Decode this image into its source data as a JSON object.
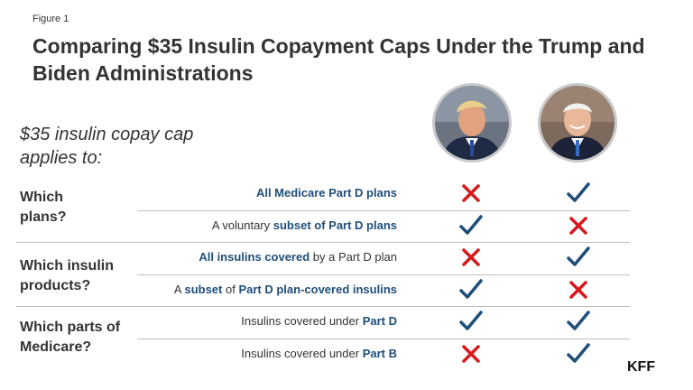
{
  "figure_label": "Figure 1",
  "title": "Comparing $35 Insulin Copayment Caps Under the Trump and Biden Administrations",
  "subhead": "$35 insulin copay cap applies to:",
  "brand": "KFF",
  "colors": {
    "check": "#1f4e79",
    "cross": "#d7191c",
    "label_bold": "#1f4e79"
  },
  "columns": [
    "trump-photo",
    "biden-photo"
  ],
  "groups": [
    {
      "label": "Which plans?"
    },
    {
      "label": "Which insulin products?"
    },
    {
      "label": "Which parts of Medicare?"
    }
  ],
  "rows": [
    {
      "parts": [
        {
          "text": "All Medicare Part D plans",
          "bold": true
        }
      ],
      "trump": "cross",
      "biden": "check"
    },
    {
      "parts": [
        {
          "text": "A voluntary ",
          "bold": false
        },
        {
          "text": "subset of Part D plans",
          "bold": true
        }
      ],
      "trump": "check",
      "biden": "cross"
    },
    {
      "parts": [
        {
          "text": "All insulins covered",
          "bold": true
        },
        {
          "text": " by a Part D plan",
          "bold": false
        }
      ],
      "trump": "cross",
      "biden": "check"
    },
    {
      "parts": [
        {
          "text": "A ",
          "bold": false
        },
        {
          "text": "subset",
          "bold": true
        },
        {
          "text": " of ",
          "bold": false
        },
        {
          "text": "Part D plan-covered insulins",
          "bold": true
        }
      ],
      "trump": "check",
      "biden": "cross"
    },
    {
      "parts": [
        {
          "text": "Insulins covered under ",
          "bold": false
        },
        {
          "text": "Part D",
          "bold": true
        }
      ],
      "trump": "check",
      "biden": "check"
    },
    {
      "parts": [
        {
          "text": "Insulins covered under ",
          "bold": false
        },
        {
          "text": "Part B",
          "bold": true
        }
      ],
      "trump": "cross",
      "biden": "check"
    }
  ]
}
